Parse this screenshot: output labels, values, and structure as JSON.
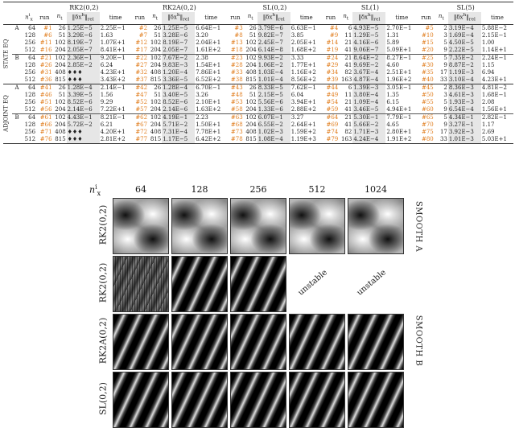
{
  "table": {
    "methods": [
      "RK2(0,2)",
      "RK2A(0,2)",
      "SL(0,2)",
      "SL(1)",
      "SL(5)"
    ],
    "header": {
      "nx": "n",
      "nx_sup": "i",
      "nx_sub": "x",
      "run": "run",
      "nt": "n",
      "nt_sub": "t",
      "norm": "‖δx",
      "norm_sup": "h",
      "norm_sub": "rel",
      "time": "time"
    },
    "sections": [
      {
        "label": "STATE EQ",
        "blocks": [
          {
            "group": "A",
            "rows": [
              [
                "64",
                "#1",
                "26",
                "1.25E−5",
                "2.25E−1",
                "#2",
                "26",
                "1.25E−5",
                "6.64E−1",
                "#3",
                "26",
                "3.79E−6",
                "6.63E−1",
                "#4",
                "6",
                "4.93E−5",
                "2.70E−1",
                "#5",
                "2",
                "3.19E−4",
                "5.88E−2"
              ],
              [
                "128",
                "#6",
                "51",
                "3.29E−6",
                "1.63",
                "#7",
                "51",
                "3.28E−6",
                "3.20",
                "#8",
                "51",
                "9.82E−7",
                "3.85",
                "#9",
                "11",
                "1.29E−5",
                "1.31",
                "#10",
                "3",
                "1.69E−4",
                "2.15E−1"
              ],
              [
                "256",
                "#11",
                "102",
                "8.19E−7",
                "1.07E+1",
                "#12",
                "102",
                "8.19E−7",
                "2.04E+1",
                "#13",
                "102",
                "2.45E−7",
                "2.05E+1",
                "#14",
                "21",
                "4.16E−6",
                "5.89",
                "#15",
                "5",
                "4.50E−5",
                "1.00"
              ],
              [
                "512",
                "#16",
                "204",
                "2.05E−7",
                "8.41E+1",
                "#17",
                "204",
                "2.05E−7",
                "1.61E+2",
                "#18",
                "204",
                "6.14E−8",
                "1.68E+2",
                "#19",
                "41",
                "9.06E−7",
                "5.09E+1",
                "#20",
                "9",
                "2.22E−5",
                "1.14E+1"
              ]
            ]
          },
          {
            "group": "B",
            "rows": [
              [
                "64",
                "#21",
                "102",
                "2.36E−1",
                "9.20E−1",
                "#22",
                "102",
                "7.67E−2",
                "2.38",
                "#23",
                "102",
                "9.93E−2",
                "3.33",
                "#24",
                "21",
                "8.64E−2",
                "8.27E−1",
                "#25",
                "5",
                "7.35E−2",
                "2.24E−1"
              ],
              [
                "128",
                "#26",
                "204",
                "2.85E−2",
                "6.24",
                "#27",
                "204",
                "9.83E−3",
                "1.54E+1",
                "#28",
                "204",
                "1.06E−2",
                "1.77E+1",
                "#29",
                "41",
                "9.69E−2",
                "4.60",
                "#30",
                "9",
                "8.87E−2",
                "1.15"
              ],
              [
                "256",
                "#31",
                "408",
                "♦♦♦",
                "4.23E+1",
                "#32",
                "408",
                "1.20E−4",
                "7.86E+1",
                "#33",
                "408",
                "1.03E−4",
                "1.16E+2",
                "#34",
                "82",
                "3.67E−4",
                "2.51E+1",
                "#35",
                "17",
                "1.19E−3",
                "6.94"
              ],
              [
                "512",
                "#36",
                "815",
                "♦♦♦",
                "3.43E+2",
                "#37",
                "815",
                "3.36E−5",
                "6.52E+2",
                "#38",
                "815",
                "1.01E−4",
                "8.56E+2",
                "#39",
                "163",
                "4.87E−4",
                "1.96E+2",
                "#40",
                "33",
                "3.10E−4",
                "4.23E+1"
              ]
            ]
          }
        ]
      },
      {
        "label": "ADJOINT EQ",
        "blocks": [
          {
            "group": "A",
            "rows": [
              [
                "64",
                "#41",
                "26",
                "1.28E−4",
                "2.14E−1",
                "#42",
                "26",
                "1.28E−4",
                "6.70E−1",
                "#43",
                "26",
                "8.33E−5",
                "7.62E−1",
                "#44",
                "6",
                "1.39E−3",
                "3.05E−1",
                "#45",
                "2",
                "8.36E−3",
                "4.81E−2"
              ],
              [
                "128",
                "#46",
                "51",
                "3.39E−5",
                "1.56",
                "#47",
                "51",
                "3.40E−5",
                "3.26",
                "#48",
                "51",
                "2.15E−5",
                "6.04",
                "#49",
                "11",
                "3.80E−4",
                "1.35",
                "#50",
                "3",
                "4.61E−3",
                "1.68E−1"
              ],
              [
                "256",
                "#51",
                "102",
                "8.52E−6",
                "9.29",
                "#52",
                "102",
                "8.52E−6",
                "2.10E+1",
                "#53",
                "102",
                "5.56E−6",
                "3.94E+1",
                "#54",
                "21",
                "1.09E−4",
                "6.15",
                "#55",
                "5",
                "1.93E−3",
                "2.08"
              ],
              [
                "512",
                "#56",
                "204",
                "2.14E−6",
                "7.22E+1",
                "#57",
                "204",
                "2.14E−6",
                "1.63E+2",
                "#58",
                "204",
                "1.33E−6",
                "2.88E+2",
                "#59",
                "41",
                "3.46E−5",
                "4.94E+1",
                "#60",
                "9",
                "6.54E−4",
                "1.56E+1"
              ]
            ]
          },
          {
            "group": "B",
            "rows": [
              [
                "64",
                "#61",
                "102",
                "4.43E−1",
                "8.21E−1",
                "#62",
                "102",
                "4.19E−1",
                "2.23",
                "#63",
                "102",
                "6.07E−1",
                "3.27",
                "#64",
                "21",
                "5.30E−1",
                "7.79E−1",
                "#65",
                "5",
                "4.34E−1",
                "2.82E−1"
              ],
              [
                "128",
                "#66",
                "204",
                "5.72E−2",
                "6.21",
                "#67",
                "204",
                "5.71E−2",
                "1.50E+1",
                "#68",
                "204",
                "6.55E−2",
                "2.64E+1",
                "#69",
                "41",
                "5.66E−2",
                "4.65",
                "#70",
                "9",
                "3.27E−1",
                "1.17"
              ],
              [
                "256",
                "#71",
                "408",
                "♦♦♦",
                "4.20E+1",
                "#72",
                "408",
                "7.31E−4",
                "7.78E+1",
                "#73",
                "408",
                "1.02E−3",
                "1.59E+2",
                "#74",
                "82",
                "1.71E−3",
                "2.80E+1",
                "#75",
                "17",
                "3.92E−3",
                "2.69"
              ],
              [
                "512",
                "#76",
                "815",
                "♦♦♦",
                "2.81E+2",
                "#77",
                "815",
                "1.17E−5",
                "6.42E+2",
                "#78",
                "815",
                "1.08E−4",
                "1.19E+3",
                "#79",
                "163",
                "4.24E−4",
                "1.91E+2",
                "#80",
                "33",
                "1.01E−3",
                "5.03E+1"
              ]
            ]
          }
        ]
      }
    ]
  },
  "figure": {
    "corner": {
      "n": "n",
      "sup": "i",
      "sub": "x"
    },
    "columns": [
      "64",
      "128",
      "256",
      "512",
      "1024"
    ],
    "rows": [
      "RK2(0,2)",
      "RK2(0,2)",
      "RK2A(0,2)",
      "SL(0,2)"
    ],
    "right_labels": [
      "SMOOTH A",
      "SMOOTH B"
    ],
    "unstable_label": "unstable"
  }
}
